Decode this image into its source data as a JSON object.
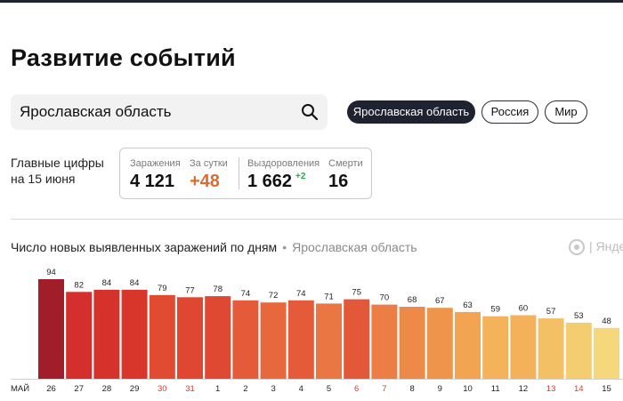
{
  "header": {
    "title": "Развитие событий"
  },
  "search": {
    "value": "Ярославская область"
  },
  "region_tabs": [
    {
      "label": "Ярославская область",
      "active": true
    },
    {
      "label": "Россия",
      "active": false
    },
    {
      "label": "Мир",
      "active": false
    }
  ],
  "summary": {
    "label_line1": "Главные цифры",
    "label_line2": "на 15 июня",
    "infections_label": "Заражения",
    "infections_value": "4 121",
    "daily_label": "За сутки",
    "daily_value": "+48",
    "recovered_label": "Выздоровления",
    "recovered_value": "1 662",
    "recovered_delta": "+2",
    "deaths_label": "Смерти",
    "deaths_value": "16"
  },
  "chart_header": {
    "title": "Число новых выявленных заражений по дням",
    "separator": "•",
    "region": "Ярославская область",
    "logo_text": "| Яндекс"
  },
  "chart_data": {
    "type": "bar",
    "title": "Число новых выявленных заражений по дням",
    "month_label": "МАЙ",
    "categories": [
      "26",
      "27",
      "28",
      "29",
      "30",
      "31",
      "1",
      "2",
      "3",
      "4",
      "5",
      "6",
      "7",
      "8",
      "9",
      "10",
      "11",
      "12",
      "13",
      "14",
      "15"
    ],
    "values": [
      94,
      82,
      84,
      84,
      79,
      77,
      78,
      74,
      72,
      74,
      71,
      75,
      70,
      68,
      67,
      63,
      59,
      60,
      57,
      53,
      48
    ],
    "weekend_categories": [
      "30",
      "31",
      "6",
      "7",
      "13",
      "14"
    ],
    "colors": [
      "#a11d2a",
      "#d42f2c",
      "#d6322b",
      "#d8362a",
      "#e04b32",
      "#df4732",
      "#df4832",
      "#e55a39",
      "#e8683d",
      "#e55a39",
      "#ea7643",
      "#e4583a",
      "#ec7d45",
      "#ee8a48",
      "#ef944b",
      "#f2a450",
      "#f4b35b",
      "#f4b159",
      "#f4c065",
      "#f4cd70",
      "#f5d87c"
    ],
    "weekend_color": "#d4402c",
    "weekday_color": "#222222",
    "ylim": [
      0,
      94
    ]
  }
}
